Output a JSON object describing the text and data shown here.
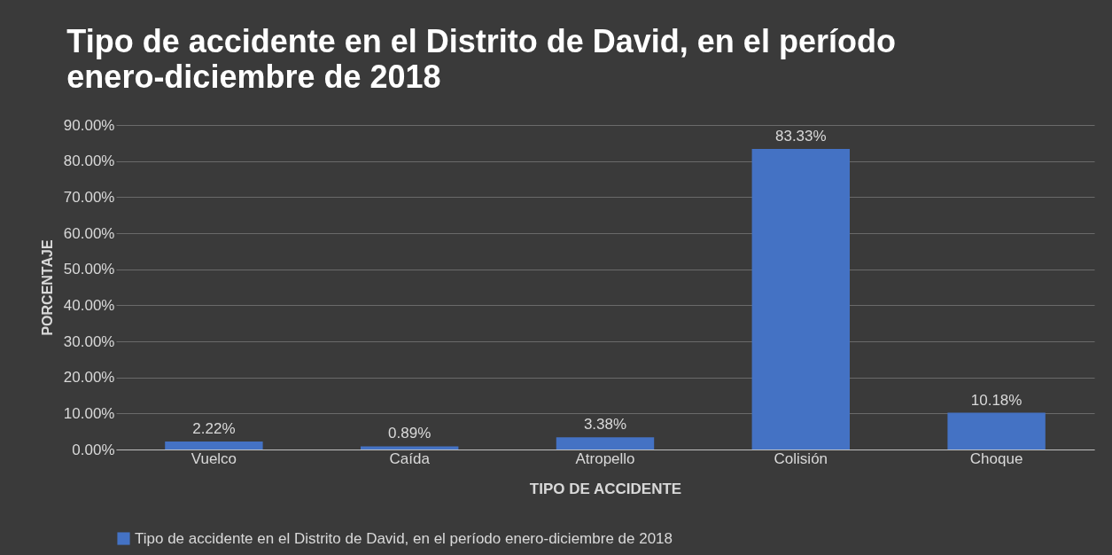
{
  "chart_data": {
    "type": "bar",
    "title": "Tipo de accidente en el Distrito de David, en el período enero-diciembre de 2018",
    "xlabel": "TIPO DE ACCIDENTE",
    "ylabel": "PORCENTAJE",
    "categories": [
      "Vuelco",
      "Caída",
      "Atropello",
      "Colisión",
      "Choque"
    ],
    "series": [
      {
        "name": "Tipo de accidente en el Distrito de David, en el período enero-diciembre de 2018",
        "color": "#4472c4",
        "values": [
          2.22,
          0.89,
          3.38,
          83.33,
          10.18
        ],
        "value_labels": [
          "2.22%",
          "0.89%",
          "3.38%",
          "83.33%",
          "10.18%"
        ]
      }
    ],
    "ylim": [
      0,
      90
    ],
    "yticks": [
      {
        "value": 0,
        "label": "0.00%"
      },
      {
        "value": 10,
        "label": "10.00%"
      },
      {
        "value": 20,
        "label": "20.00%"
      },
      {
        "value": 30,
        "label": "30.00%"
      },
      {
        "value": 40,
        "label": "40.00%"
      },
      {
        "value": 50,
        "label": "50.00%"
      },
      {
        "value": 60,
        "label": "60.00%"
      },
      {
        "value": 70,
        "label": "70.00%"
      },
      {
        "value": 80,
        "label": "80.00%"
      },
      {
        "value": 90,
        "label": "90.00%"
      }
    ],
    "grid": true,
    "legend": "bottom"
  }
}
